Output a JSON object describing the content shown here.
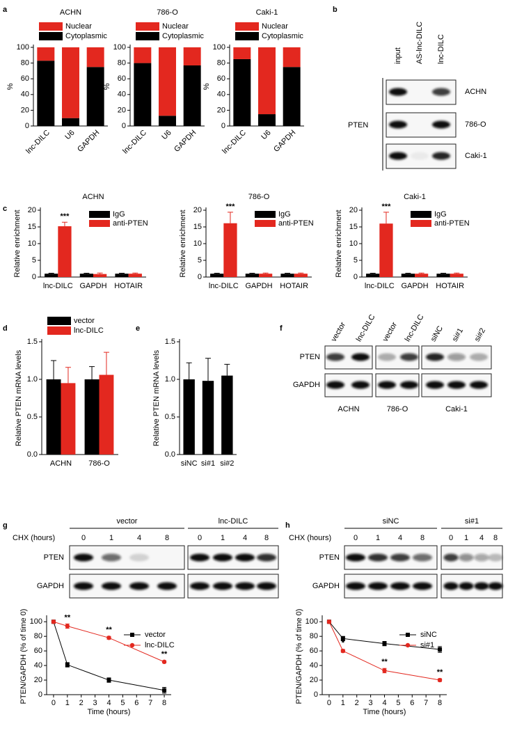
{
  "panel_labels": [
    "a",
    "b",
    "c",
    "d",
    "e",
    "f",
    "g",
    "h"
  ],
  "chart_data": [
    {
      "type": "bar",
      "stacked": true,
      "title": "ACHN",
      "ylabel": "%",
      "categories": [
        "lnc-DILC",
        "U6",
        "GAPDH"
      ],
      "series": [
        {
          "name": "Cytoplasmic",
          "color": "#000000",
          "values": [
            83,
            10,
            75
          ]
        },
        {
          "name": "Nuclear",
          "color": "#e3281f",
          "values": [
            17,
            90,
            25
          ]
        }
      ],
      "ylim": [
        0,
        100
      ],
      "yticks": [
        0,
        20,
        40,
        60,
        80,
        100
      ],
      "legend": "top"
    },
    {
      "type": "bar",
      "stacked": true,
      "title": "786-O",
      "ylabel": "%",
      "categories": [
        "lnc-DILC",
        "U6",
        "GAPDH"
      ],
      "series": [
        {
          "name": "Cytoplasmic",
          "color": "#000000",
          "values": [
            80,
            13,
            77
          ]
        },
        {
          "name": "Nuclear",
          "color": "#e3281f",
          "values": [
            20,
            87,
            23
          ]
        }
      ],
      "ylim": [
        0,
        100
      ],
      "yticks": [
        0,
        20,
        40,
        60,
        80,
        100
      ],
      "legend": "top"
    },
    {
      "type": "bar",
      "stacked": true,
      "title": "Caki-1",
      "ylabel": "%",
      "categories": [
        "lnc-DILC",
        "U6",
        "GAPDH"
      ],
      "series": [
        {
          "name": "Cytoplasmic",
          "color": "#000000",
          "values": [
            85,
            15,
            75
          ]
        },
        {
          "name": "Nuclear",
          "color": "#e3281f",
          "values": [
            15,
            85,
            25
          ]
        }
      ],
      "ylim": [
        0,
        100
      ],
      "yticks": [
        0,
        20,
        40,
        60,
        80,
        100
      ],
      "legend": "top"
    },
    {
      "type": "bar",
      "title": "ACHN",
      "ylabel": "Relative enrichment",
      "categories": [
        "lnc-DILC",
        "GAPDH",
        "HOTAIR"
      ],
      "series": [
        {
          "name": "IgG",
          "color": "#000000",
          "values": [
            1,
            1,
            1
          ],
          "errors": [
            0.15,
            0.15,
            0.15
          ]
        },
        {
          "name": "anti-PTEN",
          "color": "#e3281f",
          "values": [
            15.2,
            0.9,
            1
          ],
          "errors": [
            1.2,
            0.3,
            0.2
          ]
        }
      ],
      "ylim": [
        0,
        20
      ],
      "yticks": [
        0,
        5,
        10,
        15,
        20
      ],
      "legend": "upper right",
      "annotations": [
        {
          "text": "***",
          "category": "lnc-DILC"
        }
      ]
    },
    {
      "type": "bar",
      "title": "786-O",
      "ylabel": "Relative enrichment",
      "categories": [
        "lnc-DILC",
        "GAPDH",
        "HOTAIR"
      ],
      "series": [
        {
          "name": "IgG",
          "color": "#000000",
          "values": [
            1,
            1,
            1
          ],
          "errors": [
            0.15,
            0.15,
            0.15
          ]
        },
        {
          "name": "anti-PTEN",
          "color": "#e3281f",
          "values": [
            16.1,
            1,
            1
          ],
          "errors": [
            3.3,
            0.2,
            0.2
          ]
        }
      ],
      "ylim": [
        0,
        20
      ],
      "yticks": [
        0,
        5,
        10,
        15,
        20
      ],
      "legend": "upper right",
      "annotations": [
        {
          "text": "***",
          "category": "lnc-DILC"
        }
      ]
    },
    {
      "type": "bar",
      "title": "Caki-1",
      "ylabel": "Relative enrichment",
      "categories": [
        "lnc-DILC",
        "GAPDH",
        "HOTAIR"
      ],
      "series": [
        {
          "name": "IgG",
          "color": "#000000",
          "values": [
            1,
            1,
            1
          ],
          "errors": [
            0.15,
            0.15,
            0.15
          ]
        },
        {
          "name": "anti-PTEN",
          "color": "#e3281f",
          "values": [
            16,
            1,
            1
          ],
          "errors": [
            3.4,
            0.2,
            0.2
          ]
        }
      ],
      "ylim": [
        0,
        20
      ],
      "yticks": [
        0,
        5,
        10,
        15,
        20
      ],
      "legend": "upper right",
      "annotations": [
        {
          "text": "***",
          "category": "lnc-DILC"
        }
      ]
    },
    {
      "type": "bar",
      "ylabel": "Relative PTEN mRNA levels",
      "categories": [
        "ACHN",
        "786-O"
      ],
      "series": [
        {
          "name": "vector",
          "color": "#000000",
          "values": [
            1.0,
            1.0
          ],
          "errors": [
            0.25,
            0.17
          ]
        },
        {
          "name": "lnc-DILC",
          "color": "#e3281f",
          "values": [
            0.95,
            1.06
          ],
          "errors": [
            0.21,
            0.3
          ]
        }
      ],
      "ylim": [
        0,
        1.5
      ],
      "yticks": [
        {
          "value": 0,
          "label": "0.0"
        },
        0.5,
        {
          "value": 1,
          "label": "1.0"
        },
        1.5
      ],
      "legend": "top"
    },
    {
      "type": "bar",
      "ylabel": "Relative PTEN mRNA levels",
      "categories": [
        "siNC",
        "si#1",
        "si#2"
      ],
      "values": [
        1.0,
        0.98,
        1.05
      ],
      "errors": [
        0.22,
        0.3,
        0.15
      ],
      "color": "#000000",
      "ylim": [
        0,
        1.5
      ],
      "yticks": [
        {
          "value": 0,
          "label": "0.0"
        },
        0.5,
        {
          "value": 1,
          "label": "1.0"
        },
        1.5
      ]
    },
    {
      "type": "line",
      "xlabel": "Time (hours)",
      "ylabel": "PTEN/GAPDH (% of time 0)",
      "x": [
        0,
        1,
        4,
        8
      ],
      "series": [
        {
          "name": "vector",
          "color": "#000000",
          "marker": "square",
          "values": [
            100,
            41,
            20,
            6
          ],
          "errors": [
            2,
            3,
            3,
            4
          ]
        },
        {
          "name": "lnc-DILC",
          "color": "#e3281f",
          "marker": "circle",
          "values": [
            100,
            94,
            78,
            45
          ],
          "errors": [
            2,
            3,
            2,
            1.5
          ]
        }
      ],
      "xlim": [
        -0.5,
        8.5
      ],
      "xticks": [
        0,
        1,
        2,
        3,
        4,
        5,
        6,
        7,
        8
      ],
      "ylim": [
        0,
        105
      ],
      "yticks": [
        0,
        20,
        40,
        60,
        80,
        100
      ],
      "legend": "upper right",
      "annotations": [
        {
          "text": "**",
          "x": 1
        },
        {
          "text": "**",
          "x": 4
        },
        {
          "text": "**",
          "x": 8
        }
      ]
    },
    {
      "type": "line",
      "xlabel": "Time (hours)",
      "ylabel": "PTEN/GAPDH (% of time 0)",
      "x": [
        0,
        1,
        4,
        8
      ],
      "series": [
        {
          "name": "siNC",
          "color": "#000000",
          "marker": "square",
          "values": [
            100,
            77,
            70,
            62
          ],
          "errors": [
            2,
            3,
            3,
            4
          ]
        },
        {
          "name": "si#1",
          "color": "#e3281f",
          "marker": "circle",
          "values": [
            100,
            60,
            33,
            20
          ],
          "errors": [
            2,
            2,
            3,
            2
          ]
        }
      ],
      "xlim": [
        -0.5,
        8.5
      ],
      "xticks": [
        0,
        1,
        2,
        3,
        4,
        5,
        6,
        7,
        8
      ],
      "ylim": [
        0,
        105
      ],
      "yticks": [
        0,
        20,
        40,
        60,
        80,
        100
      ],
      "legend": "upper right",
      "annotations": [
        {
          "text": "*",
          "x": 1
        },
        {
          "text": "**",
          "x": 4
        },
        {
          "text": "**",
          "x": 8
        }
      ]
    }
  ],
  "blots": {
    "b": {
      "protein": "PTEN",
      "columns": [
        "input",
        "AS-lnc-DILC",
        "lnc-DILC"
      ],
      "rows": [
        "ACHN",
        "786-O",
        "Caki-1"
      ]
    },
    "f": {
      "columns": [
        "vector",
        "lnc-DILC",
        "vector",
        "lnc-DILC",
        "siNC",
        "si#1",
        "si#2"
      ],
      "rows": [
        "PTEN",
        "GAPDH"
      ],
      "groups": [
        "ACHN",
        "786-O",
        "Caki-1"
      ]
    },
    "g": {
      "time_label": "CHX (hours)",
      "groups": [
        "vector",
        "lnc-DILC"
      ],
      "times": [
        "0",
        "1",
        "4",
        "8"
      ],
      "rows": [
        "PTEN",
        "GAPDH"
      ]
    },
    "h": {
      "time_label": "CHX (hours)",
      "groups": [
        "siNC",
        "si#1"
      ],
      "times": [
        "0",
        "1",
        "4",
        "8"
      ],
      "rows": [
        "PTEN",
        "GAPDH"
      ]
    }
  }
}
